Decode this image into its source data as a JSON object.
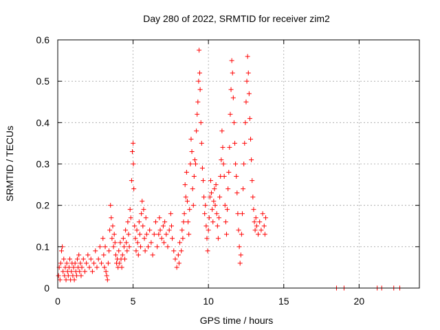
{
  "chart_data": {
    "type": "scatter",
    "title": "Day 280 of 2022, SRMTID for receiver zim2",
    "xlabel": "GPS time / hours",
    "ylabel": "SRMTID / TECUs",
    "xlim": [
      0,
      24
    ],
    "ylim": [
      0,
      0.6
    ],
    "xticks": [
      0,
      5,
      10,
      15,
      20
    ],
    "yticks": [
      0,
      0.1,
      0.2,
      0.3,
      0.4,
      0.5,
      0.6
    ],
    "xtick_labels": [
      "0",
      "5",
      "10",
      "15",
      "20"
    ],
    "ytick_labels": [
      "0",
      "0.1",
      "0.2",
      "0.3",
      "0.4",
      "0.5",
      "0.6"
    ],
    "grid": true,
    "marker": "+",
    "color": "#ff0000",
    "series": [
      {
        "name": "SRMTID",
        "points": [
          [
            0.05,
            0.03
          ],
          [
            0.1,
            0.05
          ],
          [
            0.15,
            0.02
          ],
          [
            0.2,
            0.06
          ],
          [
            0.25,
            0.09
          ],
          [
            0.3,
            0.1
          ],
          [
            0.35,
            0.04
          ],
          [
            0.4,
            0.07
          ],
          [
            0.45,
            0.03
          ],
          [
            0.5,
            0.05
          ],
          [
            0.55,
            0.02
          ],
          [
            0.6,
            0.06
          ],
          [
            0.65,
            0.04
          ],
          [
            0.7,
            0.03
          ],
          [
            0.75,
            0.05
          ],
          [
            0.8,
            0.07
          ],
          [
            0.85,
            0.02
          ],
          [
            0.9,
            0.04
          ],
          [
            0.95,
            0.06
          ],
          [
            1.0,
            0.03
          ],
          [
            1.05,
            0.05
          ],
          [
            1.1,
            0.02
          ],
          [
            1.15,
            0.06
          ],
          [
            1.2,
            0.04
          ],
          [
            1.25,
            0.03
          ],
          [
            1.3,
            0.07
          ],
          [
            1.35,
            0.05
          ],
          [
            1.4,
            0.08
          ],
          [
            1.45,
            0.04
          ],
          [
            1.5,
            0.06
          ],
          [
            1.55,
            0.03
          ],
          [
            1.6,
            0.05
          ],
          [
            1.7,
            0.07
          ],
          [
            1.8,
            0.04
          ],
          [
            1.9,
            0.06
          ],
          [
            2.0,
            0.08
          ],
          [
            2.1,
            0.05
          ],
          [
            2.2,
            0.07
          ],
          [
            2.3,
            0.04
          ],
          [
            2.4,
            0.06
          ],
          [
            2.5,
            0.09
          ],
          [
            2.6,
            0.05
          ],
          [
            2.7,
            0.07
          ],
          [
            2.8,
            0.1
          ],
          [
            2.9,
            0.06
          ],
          [
            3.0,
            0.12
          ],
          [
            3.05,
            0.08
          ],
          [
            3.1,
            0.05
          ],
          [
            3.15,
            0.1
          ],
          [
            3.2,
            0.04
          ],
          [
            3.25,
            0.03
          ],
          [
            3.3,
            0.02
          ],
          [
            3.35,
            0.06
          ],
          [
            3.4,
            0.09
          ],
          [
            3.45,
            0.14
          ],
          [
            3.5,
            0.2
          ],
          [
            3.55,
            0.17
          ],
          [
            3.6,
            0.12
          ],
          [
            3.65,
            0.15
          ],
          [
            3.7,
            0.1
          ],
          [
            3.75,
            0.13
          ],
          [
            3.8,
            0.11
          ],
          [
            3.85,
            0.08
          ],
          [
            3.9,
            0.06
          ],
          [
            3.95,
            0.07
          ],
          [
            4.0,
            0.05
          ],
          [
            4.05,
            0.09
          ],
          [
            4.1,
            0.06
          ],
          [
            4.15,
            0.11
          ],
          [
            4.2,
            0.07
          ],
          [
            4.25,
            0.05
          ],
          [
            4.3,
            0.08
          ],
          [
            4.35,
            0.12
          ],
          [
            4.4,
            0.1
          ],
          [
            4.45,
            0.07
          ],
          [
            4.5,
            0.14
          ],
          [
            4.55,
            0.11
          ],
          [
            4.6,
            0.09
          ],
          [
            4.65,
            0.16
          ],
          [
            4.7,
            0.13
          ],
          [
            4.75,
            0.1
          ],
          [
            4.8,
            0.19
          ],
          [
            4.85,
            0.17
          ],
          [
            4.9,
            0.26
          ],
          [
            4.95,
            0.33
          ],
          [
            5.0,
            0.35
          ],
          [
            5.02,
            0.3
          ],
          [
            5.05,
            0.24
          ],
          [
            5.1,
            0.15
          ],
          [
            5.15,
            0.12
          ],
          [
            5.2,
            0.09
          ],
          [
            5.25,
            0.14
          ],
          [
            5.3,
            0.11
          ],
          [
            5.35,
            0.08
          ],
          [
            5.4,
            0.16
          ],
          [
            5.45,
            0.13
          ],
          [
            5.5,
            0.1
          ],
          [
            5.55,
            0.18
          ],
          [
            5.6,
            0.21
          ],
          [
            5.65,
            0.15
          ],
          [
            5.7,
            0.19
          ],
          [
            5.75,
            0.12
          ],
          [
            5.8,
            0.09
          ],
          [
            5.85,
            0.17
          ],
          [
            5.9,
            0.13
          ],
          [
            6.0,
            0.1
          ],
          [
            6.1,
            0.14
          ],
          [
            6.2,
            0.11
          ],
          [
            6.3,
            0.08
          ],
          [
            6.4,
            0.13
          ],
          [
            6.5,
            0.16
          ],
          [
            6.6,
            0.1
          ],
          [
            6.7,
            0.13
          ],
          [
            6.75,
            0.17
          ],
          [
            6.8,
            0.14
          ],
          [
            6.9,
            0.12
          ],
          [
            7.0,
            0.15
          ],
          [
            7.05,
            0.11
          ],
          [
            7.1,
            0.16
          ],
          [
            7.2,
            0.13
          ],
          [
            7.3,
            0.1
          ],
          [
            7.4,
            0.14
          ],
          [
            7.5,
            0.18
          ],
          [
            7.55,
            0.15
          ],
          [
            7.6,
            0.12
          ],
          [
            7.7,
            0.09
          ],
          [
            7.8,
            0.07
          ],
          [
            7.9,
            0.05
          ],
          [
            8.0,
            0.08
          ],
          [
            8.05,
            0.06
          ],
          [
            8.1,
            0.11
          ],
          [
            8.2,
            0.09
          ],
          [
            8.25,
            0.14
          ],
          [
            8.3,
            0.12
          ],
          [
            8.35,
            0.16
          ],
          [
            8.4,
            0.18
          ],
          [
            8.45,
            0.25
          ],
          [
            8.5,
            0.22
          ],
          [
            8.55,
            0.28
          ],
          [
            8.6,
            0.21
          ],
          [
            8.65,
            0.16
          ],
          [
            8.7,
            0.13
          ],
          [
            8.75,
            0.19
          ],
          [
            8.8,
            0.3
          ],
          [
            8.85,
            0.36
          ],
          [
            8.9,
            0.33
          ],
          [
            8.95,
            0.24
          ],
          [
            9.0,
            0.2
          ],
          [
            9.05,
            0.27
          ],
          [
            9.1,
            0.31
          ],
          [
            9.15,
            0.3
          ],
          [
            9.2,
            0.38
          ],
          [
            9.25,
            0.42
          ],
          [
            9.3,
            0.45
          ],
          [
            9.35,
            0.5
          ],
          [
            9.38,
            0.575
          ],
          [
            9.42,
            0.52
          ],
          [
            9.45,
            0.48
          ],
          [
            9.5,
            0.4
          ],
          [
            9.55,
            0.35
          ],
          [
            9.6,
            0.29
          ],
          [
            9.65,
            0.26
          ],
          [
            9.7,
            0.22
          ],
          [
            9.75,
            0.18
          ],
          [
            9.8,
            0.2
          ],
          [
            9.85,
            0.15
          ],
          [
            9.9,
            0.12
          ],
          [
            9.95,
            0.09
          ],
          [
            10.0,
            0.14
          ],
          [
            10.05,
            0.17
          ],
          [
            10.1,
            0.22
          ],
          [
            10.15,
            0.26
          ],
          [
            10.2,
            0.23
          ],
          [
            10.25,
            0.19
          ],
          [
            10.3,
            0.16
          ],
          [
            10.35,
            0.21
          ],
          [
            10.4,
            0.24
          ],
          [
            10.45,
            0.2
          ],
          [
            10.5,
            0.25
          ],
          [
            10.55,
            0.18
          ],
          [
            10.6,
            0.15
          ],
          [
            10.65,
            0.12
          ],
          [
            10.7,
            0.17
          ],
          [
            10.75,
            0.22
          ],
          [
            10.8,
            0.27
          ],
          [
            10.85,
            0.31
          ],
          [
            10.9,
            0.38
          ],
          [
            10.95,
            0.34
          ],
          [
            11.0,
            0.3
          ],
          [
            11.05,
            0.27
          ],
          [
            11.1,
            0.2
          ],
          [
            11.15,
            0.16
          ],
          [
            11.2,
            0.13
          ],
          [
            11.25,
            0.19
          ],
          [
            11.3,
            0.24
          ],
          [
            11.35,
            0.28
          ],
          [
            11.4,
            0.34
          ],
          [
            11.45,
            0.42
          ],
          [
            11.5,
            0.48
          ],
          [
            11.55,
            0.55
          ],
          [
            11.6,
            0.52
          ],
          [
            11.65,
            0.46
          ],
          [
            11.7,
            0.4
          ],
          [
            11.75,
            0.35
          ],
          [
            11.8,
            0.3
          ],
          [
            11.85,
            0.27
          ],
          [
            11.9,
            0.23
          ],
          [
            11.95,
            0.18
          ],
          [
            12.0,
            0.14
          ],
          [
            12.05,
            0.1
          ],
          [
            12.1,
            0.06
          ],
          [
            12.15,
            0.08
          ],
          [
            12.2,
            0.13
          ],
          [
            12.25,
            0.18
          ],
          [
            12.3,
            0.24
          ],
          [
            12.35,
            0.3
          ],
          [
            12.4,
            0.35
          ],
          [
            12.45,
            0.4
          ],
          [
            12.5,
            0.45
          ],
          [
            12.55,
            0.5
          ],
          [
            12.6,
            0.56
          ],
          [
            12.65,
            0.52
          ],
          [
            12.7,
            0.47
          ],
          [
            12.75,
            0.41
          ],
          [
            12.8,
            0.36
          ],
          [
            12.85,
            0.31
          ],
          [
            12.9,
            0.26
          ],
          [
            12.95,
            0.22
          ],
          [
            13.0,
            0.19
          ],
          [
            13.05,
            0.16
          ],
          [
            13.1,
            0.14
          ],
          [
            13.15,
            0.17
          ],
          [
            13.2,
            0.15
          ],
          [
            13.3,
            0.13
          ],
          [
            13.4,
            0.16
          ],
          [
            13.5,
            0.14
          ],
          [
            13.6,
            0.18
          ],
          [
            13.7,
            0.15
          ],
          [
            13.75,
            0.13
          ],
          [
            13.8,
            0.17
          ],
          [
            18.5,
            0.0
          ],
          [
            19.0,
            0.0
          ],
          [
            21.2,
            0.0
          ],
          [
            21.5,
            0.0
          ],
          [
            22.3,
            0.0
          ],
          [
            22.7,
            0.0
          ]
        ]
      }
    ]
  }
}
